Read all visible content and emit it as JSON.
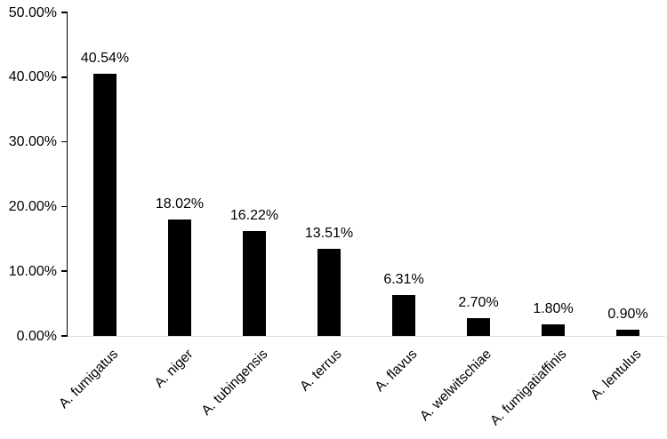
{
  "chart_data": {
    "type": "bar",
    "categories": [
      "A. fumigatus",
      "A. niger",
      "A. tubingensis",
      "A. terrus",
      "A. flavus",
      "A. welwitschiae",
      "A. fumigatiaffinis",
      "A. lentulus"
    ],
    "values": [
      40.54,
      18.02,
      16.22,
      13.51,
      6.31,
      2.7,
      1.8,
      0.9
    ],
    "value_labels": [
      "40.54%",
      "18.02%",
      "16.22%",
      "13.51%",
      "6.31%",
      "2.70%",
      "1.80%",
      "0.90%"
    ],
    "xlabel": "",
    "ylabel": "",
    "ylim": [
      0,
      50
    ],
    "yticks": [
      0,
      10,
      20,
      30,
      40,
      50
    ],
    "ytick_labels": [
      "0.00%",
      "10.00%",
      "20.00%",
      "30.00%",
      "40.00%",
      "50.00%"
    ],
    "grid": false,
    "legend": false,
    "bar_color": "#000000",
    "axis_color": "#000000",
    "baseline_color": "#d9d9d9",
    "text_color": "#000000",
    "x_label_rotation_deg": 45
  }
}
